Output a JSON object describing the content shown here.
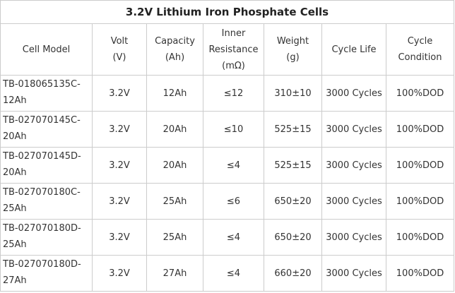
{
  "table": {
    "title": "3.2V Lithium Iron Phosphate Cells",
    "header": [
      "Cell Model",
      "Volt\n(V)",
      "Capacity\n(Ah)",
      "Inner\nResistance\n(mΩ)",
      "Weight\n(g)",
      "Cycle Life",
      "Cycle\nCondition"
    ],
    "rows": [
      [
        "TB-018065135C-\n12Ah",
        "3.2V",
        "12Ah",
        "≤12",
        "310±10",
        "3000 Cycles",
        "100%DOD"
      ],
      [
        "TB-027070145C-\n20Ah",
        "3.2V",
        "20Ah",
        "≤10",
        "525±15",
        "3000 Cycles",
        "100%DOD"
      ],
      [
        "TB-027070145D-\n20Ah",
        "3.2V",
        "20Ah",
        "≤4",
        "525±15",
        "3000 Cycles",
        "100%DOD"
      ],
      [
        "TB-027070180C-\n25Ah",
        "3.2V",
        "25Ah",
        "≤6",
        "650±20",
        "3000 Cycles",
        "100%DOD"
      ],
      [
        "TB-027070180D-\n25Ah",
        "3.2V",
        "25Ah",
        "≤4",
        "650±20",
        "3000 Cycles",
        "100%DOD"
      ],
      [
        "TB-027070180D-\n27Ah",
        "3.2V",
        "27Ah",
        "≤4",
        "660±20",
        "3000 Cycles",
        "100%DOD"
      ]
    ]
  }
}
